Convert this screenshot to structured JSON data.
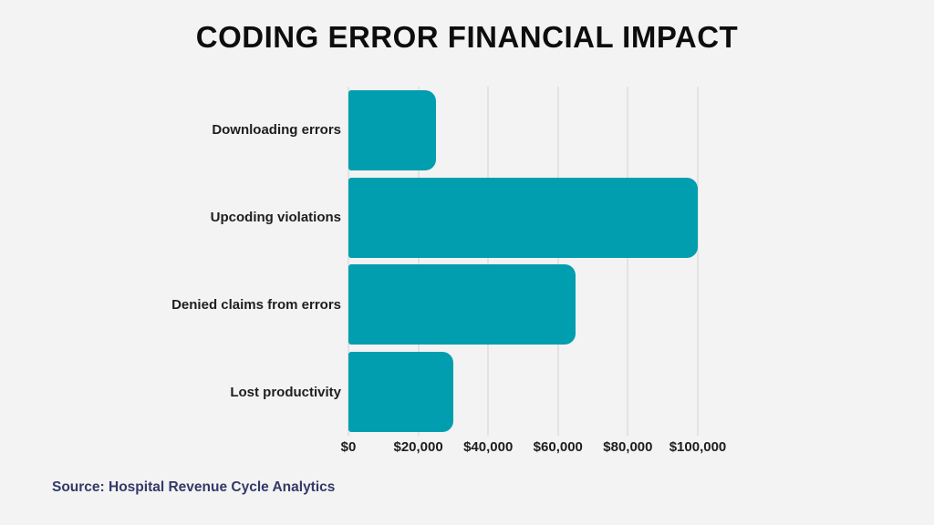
{
  "header": {
    "title": "CODING ERROR FINANCIAL IMPACT"
  },
  "footer": {
    "source": "Source: Hospital Revenue Cycle Analytics"
  },
  "colors": {
    "background": "#f3f3f4",
    "bar": "#009EAE",
    "gridline": "#e3e3e4",
    "title_text": "#0d0d0d",
    "label_text": "#1e1e1e",
    "source_text": "#333a66"
  },
  "chart_data": {
    "type": "bar",
    "orientation": "horizontal",
    "title": "CODING ERROR FINANCIAL IMPACT",
    "categories": [
      "Downloading errors",
      "Upcoding violations",
      "Denied claims from errors",
      "Lost productivity"
    ],
    "values": [
      25000,
      100000,
      65000,
      30000
    ],
    "xlabel": "",
    "ylabel": "",
    "xlim": [
      0,
      100000
    ],
    "x_ticks": [
      0,
      20000,
      40000,
      60000,
      80000,
      100000
    ],
    "x_tick_labels": [
      "$0",
      "$20,000",
      "$40,000",
      "$60,000",
      "$80,000",
      "$100,000"
    ],
    "grid": true,
    "legend": false,
    "bar_color": "#009EAE",
    "gridline_color": "#e3e3e4",
    "source": "Source: Hospital Revenue Cycle Analytics"
  }
}
